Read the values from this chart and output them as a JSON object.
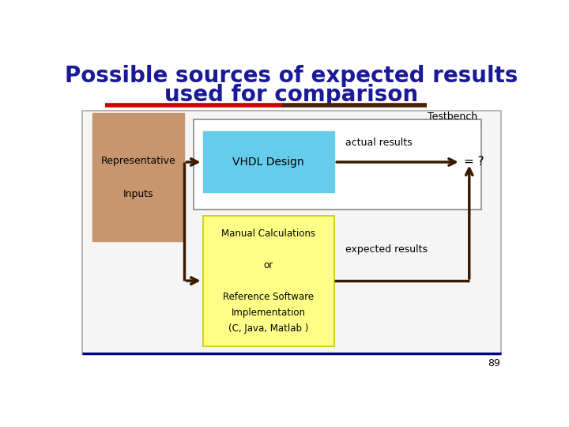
{
  "title_line1": "Possible sources of expected results",
  "title_line2": "used for comparison",
  "title_color": "#1a1a99",
  "title_fontsize": 20,
  "red_line_color": "#cc0000",
  "dark_line_color": "#4a2000",
  "blue_line_color": "#00008b",
  "bg_color": "#ffffff",
  "outer_box_facecolor": "#f5f5f5",
  "outer_box_edgecolor": "#aaaaaa",
  "testbench_label": "Testbench",
  "rep_inputs_label": "Representative\n\nInputs",
  "rep_inputs_box_color": "#c8966e",
  "vhdl_box_color": "#66ccee",
  "vhdl_label": "VHDL Design",
  "yellow_box_color": "#ffff88",
  "yellow_box_edge": "#cccc00",
  "yellow_label": "Manual Calculations\n\nor\n\nReference Software\nImplementation\n(C, Java, Matlab )",
  "actual_results_label": "actual results",
  "expected_results_label": "expected results",
  "eq_label": "= ?",
  "arrow_color": "#3a1a00",
  "tb_box_edge": "#888888",
  "page_number": "89"
}
